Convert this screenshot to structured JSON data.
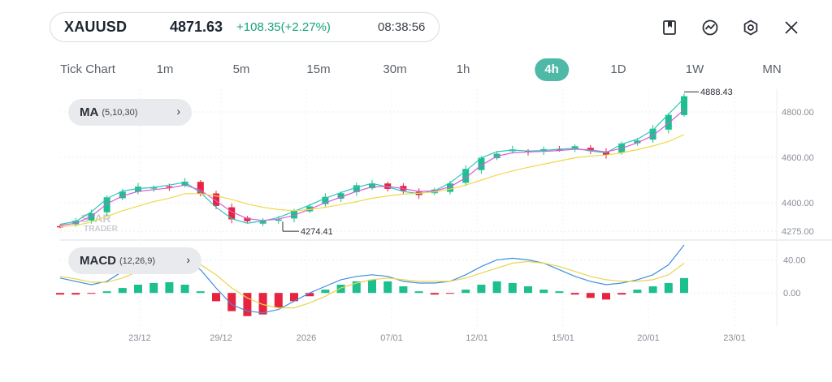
{
  "quote": {
    "symbol": "XAUUSD",
    "price": "4871.63",
    "change": "+108.35(+2.27%)",
    "time": "08:38:56",
    "up_color": "#17a37a"
  },
  "toolbar": {
    "icons": [
      "bookmark-icon",
      "indicator-icon",
      "settings-icon",
      "close-icon"
    ]
  },
  "timeframes": {
    "items": [
      "Tick Chart",
      "1m",
      "5m",
      "15m",
      "30m",
      "1h",
      "4h",
      "1D",
      "1W",
      "MN"
    ],
    "selected": "4h",
    "accent": "#4fb9a8"
  },
  "ma_indicator": {
    "name": "MA",
    "params": "(5,10,30)"
  },
  "macd_indicator": {
    "name": "MACD",
    "params": "(12,26,9)"
  },
  "price_axis": {
    "labels": [
      "4800.00",
      "4600.00",
      "4400.00",
      "4275.00"
    ],
    "high_label": "4888.43",
    "low_label": "4274.41"
  },
  "macd_axis": {
    "labels": [
      "40.00",
      "0.00"
    ]
  },
  "date_axis": {
    "labels": [
      "23/12",
      "29/12",
      "2026",
      "07/01",
      "12/01",
      "15/01",
      "20/01",
      "23/01"
    ]
  },
  "watermark": {
    "line1": "STAR",
    "line2": "TRADER"
  },
  "colors": {
    "bull": "#1dbf8e",
    "bear": "#e8233f",
    "ma5": "#2ec7b8",
    "ma10": "#d35fd8",
    "ma30": "#efd84c",
    "macd_line": "#3d8fe0",
    "signal_line": "#e8d44d"
  },
  "chart_data": [
    {
      "type": "candlestick",
      "title": "XAUUSD 4h",
      "x_labels": [
        "23/12",
        "29/12",
        "2026",
        "07/01",
        "12/01",
        "15/01",
        "20/01",
        "23/01"
      ],
      "y_ticks": [
        4800,
        4600,
        4400,
        4275
      ],
      "ylim": [
        4250,
        4900
      ],
      "high": 4888.43,
      "low": 4274.41,
      "series": [
        {
          "name": "MA 5",
          "values": [
            4305,
            4318,
            4360,
            4418,
            4452,
            4462,
            4468,
            4478,
            4490,
            4445,
            4380,
            4330,
            4310,
            4320,
            4335,
            4362,
            4390,
            4420,
            4445,
            4468,
            4485,
            4470,
            4450,
            4440,
            4452,
            4488,
            4540,
            4598,
            4625,
            4632,
            4628,
            4630,
            4636,
            4640,
            4628,
            4620,
            4658,
            4680,
            4720,
            4790,
            4860
          ]
        },
        {
          "name": "MA 10",
          "values": [
            4300,
            4310,
            4340,
            4395,
            4430,
            4450,
            4458,
            4465,
            4478,
            4455,
            4408,
            4360,
            4330,
            4322,
            4328,
            4345,
            4372,
            4400,
            4425,
            4450,
            4470,
            4472,
            4462,
            4450,
            4452,
            4470,
            4510,
            4565,
            4605,
            4620,
            4624,
            4626,
            4630,
            4636,
            4632,
            4624,
            4640,
            4664,
            4696,
            4750,
            4810
          ]
        },
        {
          "name": "MA 30",
          "values": [
            4295,
            4300,
            4315,
            4340,
            4365,
            4385,
            4405,
            4420,
            4440,
            4440,
            4430,
            4415,
            4395,
            4380,
            4370,
            4365,
            4370,
            4380,
            4392,
            4405,
            4420,
            4430,
            4438,
            4442,
            4448,
            4460,
            4478,
            4500,
            4522,
            4540,
            4556,
            4570,
            4584,
            4598,
            4606,
            4610,
            4620,
            4634,
            4650,
            4670,
            4700
          ]
        }
      ]
    },
    {
      "type": "bar",
      "title": "MACD (12,26,9)",
      "y_ticks": [
        40,
        0
      ],
      "ylim": [
        -40,
        60
      ],
      "series": [
        {
          "name": "Histogram",
          "values": [
            -2,
            -2,
            -1,
            2,
            6,
            10,
            12,
            13,
            10,
            2,
            -10,
            -22,
            -28,
            -26,
            -18,
            -10,
            -4,
            4,
            10,
            14,
            16,
            14,
            8,
            2,
            -2,
            -1,
            4,
            10,
            14,
            12,
            8,
            4,
            2,
            -2,
            -6,
            -8,
            -2,
            4,
            8,
            12,
            18
          ]
        },
        {
          "name": "MACD",
          "values": [
            18,
            14,
            10,
            14,
            26,
            36,
            40,
            42,
            40,
            28,
            6,
            -14,
            -22,
            -24,
            -20,
            -10,
            0,
            8,
            16,
            20,
            22,
            20,
            14,
            12,
            12,
            14,
            22,
            32,
            40,
            42,
            40,
            36,
            28,
            20,
            14,
            10,
            12,
            16,
            22,
            34,
            58
          ]
        },
        {
          "name": "Signal",
          "values": [
            20,
            17,
            13,
            13,
            18,
            26,
            32,
            36,
            38,
            34,
            22,
            6,
            -6,
            -14,
            -18,
            -18,
            -12,
            -4,
            6,
            12,
            16,
            18,
            16,
            14,
            14,
            14,
            18,
            24,
            30,
            36,
            38,
            36,
            32,
            26,
            20,
            16,
            14,
            14,
            16,
            22,
            36
          ]
        }
      ]
    }
  ]
}
